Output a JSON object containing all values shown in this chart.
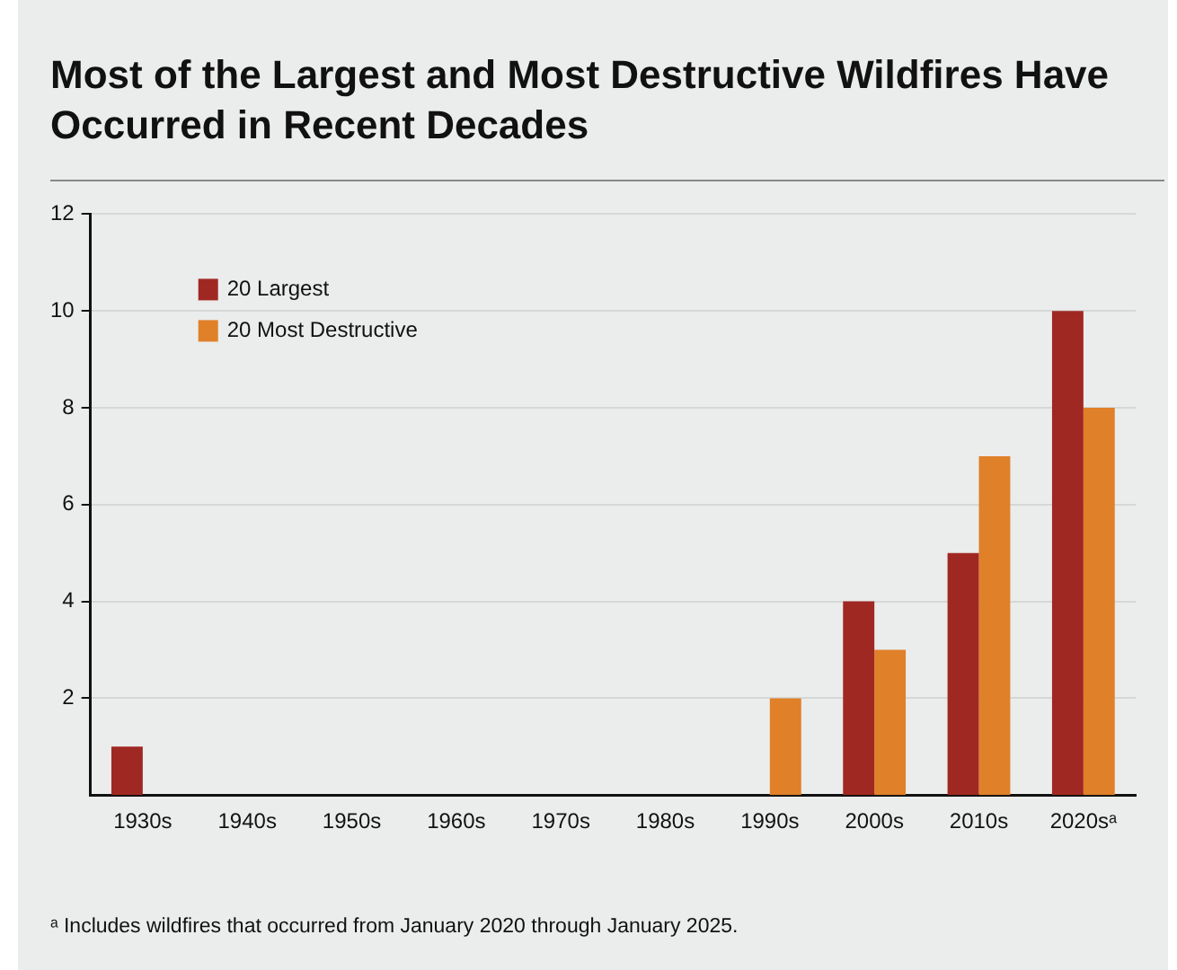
{
  "chart_data": {
    "type": "bar",
    "title": "Most of the Largest and Most Destructive Wildfires Have Occurred in Recent Decades",
    "categories": [
      "1930s",
      "1940s",
      "1950s",
      "1960s",
      "1970s",
      "1980s",
      "1990s",
      "2000s",
      "2010s",
      "2020sᵃ"
    ],
    "series": [
      {
        "name": "20 Largest",
        "color": "#a02822",
        "values": [
          1,
          0,
          0,
          0,
          0,
          0,
          0,
          4,
          5,
          10
        ]
      },
      {
        "name": "20 Most Destructive",
        "color": "#e08028",
        "values": [
          0,
          0,
          0,
          0,
          0,
          0,
          2,
          3,
          7,
          8
        ]
      }
    ],
    "ylim": [
      0,
      12
    ],
    "yticks": [
      2,
      4,
      6,
      8,
      10,
      12
    ],
    "grid": "y",
    "legend": "top left",
    "annotations": [
      "ᵃ Includes wildfires that occurred from January 2020 through January 2025."
    ]
  }
}
